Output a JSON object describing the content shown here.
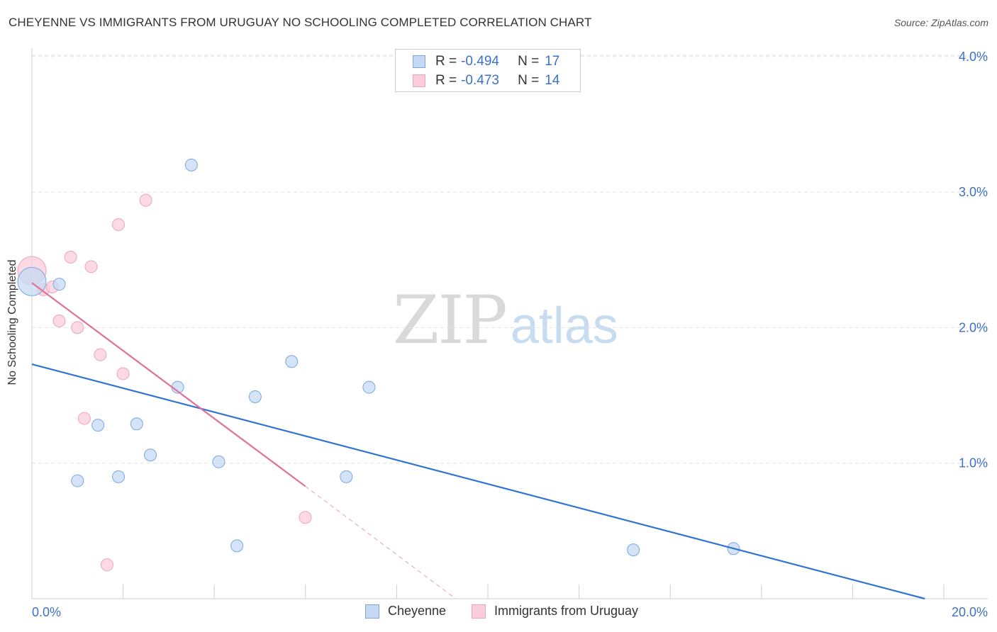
{
  "title": "CHEYENNE VS IMMIGRANTS FROM URUGUAY NO SCHOOLING COMPLETED CORRELATION CHART",
  "source": "Source: ZipAtlas.com",
  "watermark": {
    "part1": "ZIP",
    "part2": "atlas"
  },
  "legend": [
    {
      "r_label": "R =",
      "r_value": "-0.494",
      "n_label": "N =",
      "n_value": "17"
    },
    {
      "r_label": "R =",
      "r_value": "-0.473",
      "n_label": "N =",
      "n_value": "14"
    }
  ],
  "bottom_legend": [
    "Cheyenne",
    "Immigrants from Uruguay"
  ],
  "chart_data": {
    "type": "scatter",
    "title": "CHEYENNE VS IMMIGRANTS FROM URUGUAY NO SCHOOLING COMPLETED CORRELATION CHART",
    "xlabel": "",
    "ylabel": "No Schooling Completed",
    "xlim": [
      0,
      20
    ],
    "ylim": [
      0,
      4.2
    ],
    "x_tick_labels": [
      "0.0%",
      "20.0%"
    ],
    "y_ticks": [
      1,
      2,
      3,
      4
    ],
    "y_tick_labels": [
      "1.0%",
      "2.0%",
      "3.0%",
      "4.0%"
    ],
    "grid": true,
    "legend_position": "top-center",
    "series": [
      {
        "name": "Cheyenne",
        "color": "#7aa7e0",
        "fill": "#c5d9f2",
        "line_color": "#2f74d0",
        "points": [
          {
            "x": 0.0,
            "y": 2.34,
            "big": true
          },
          {
            "x": 0.6,
            "y": 2.32
          },
          {
            "x": 3.5,
            "y": 3.2
          },
          {
            "x": 1.0,
            "y": 0.87
          },
          {
            "x": 1.45,
            "y": 1.28
          },
          {
            "x": 1.9,
            "y": 0.9
          },
          {
            "x": 2.3,
            "y": 1.29
          },
          {
            "x": 2.6,
            "y": 1.06
          },
          {
            "x": 3.2,
            "y": 1.56
          },
          {
            "x": 4.1,
            "y": 1.01
          },
          {
            "x": 4.5,
            "y": 0.39
          },
          {
            "x": 4.9,
            "y": 1.49
          },
          {
            "x": 5.7,
            "y": 1.75
          },
          {
            "x": 6.9,
            "y": 0.9
          },
          {
            "x": 7.4,
            "y": 1.56
          },
          {
            "x": 13.2,
            "y": 0.36
          },
          {
            "x": 15.4,
            "y": 0.37
          }
        ],
        "trend": {
          "x": [
            0,
            19.6
          ],
          "y": [
            1.73,
            0.0
          ]
        }
      },
      {
        "name": "Immigrants from Uruguay",
        "color": "#f0a3bc",
        "fill": "#f9cdd9",
        "line_color": "#e0709a",
        "points": [
          {
            "x": 0.0,
            "y": 2.42,
            "big": true
          },
          {
            "x": 0.25,
            "y": 2.28
          },
          {
            "x": 0.45,
            "y": 2.3
          },
          {
            "x": 0.6,
            "y": 2.05
          },
          {
            "x": 0.85,
            "y": 2.52
          },
          {
            "x": 1.0,
            "y": 2.0
          },
          {
            "x": 1.3,
            "y": 2.45
          },
          {
            "x": 1.15,
            "y": 1.33
          },
          {
            "x": 1.5,
            "y": 1.8
          },
          {
            "x": 1.65,
            "y": 0.25
          },
          {
            "x": 1.9,
            "y": 2.76
          },
          {
            "x": 2.0,
            "y": 1.66
          },
          {
            "x": 2.5,
            "y": 2.94
          },
          {
            "x": 6.0,
            "y": 0.6
          }
        ],
        "trend": {
          "x": [
            0,
            6.0
          ],
          "y": [
            2.33,
            0.83
          ]
        },
        "trend_extension": {
          "x": [
            6.0,
            9.3
          ],
          "y": [
            0.83,
            0.0
          ]
        }
      }
    ]
  }
}
